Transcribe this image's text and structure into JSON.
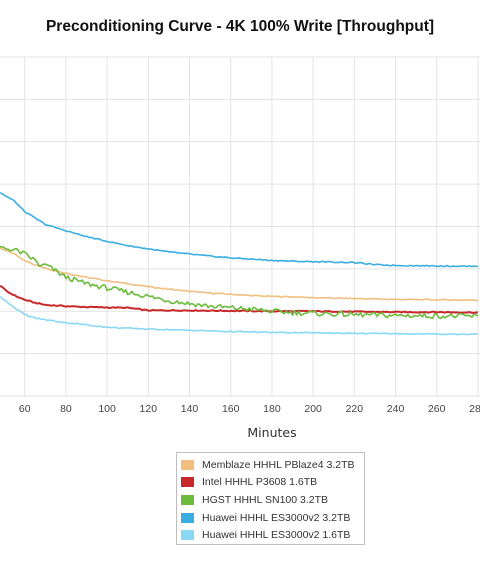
{
  "chart_data": {
    "type": "line",
    "title": "Preconditioning Curve - 4K 100% Write [Throughput]",
    "xlabel": "Minutes",
    "ylabel": "",
    "x_ticks": [
      60,
      80,
      100,
      120,
      140,
      160,
      180,
      200,
      220,
      240,
      260,
      280
    ],
    "xlim": [
      48,
      281
    ],
    "ylim": [
      0,
      8
    ],
    "y_gridlines": [
      0,
      1,
      2,
      3,
      4,
      5,
      6,
      7,
      8
    ],
    "grid": true,
    "legend_position": "bottom",
    "series": [
      {
        "name": "Memblaze HHHL PBlaze4 3.2TB",
        "color": "#f0bf80",
        "x": [
          48,
          55,
          60,
          65,
          70,
          75,
          80,
          90,
          100,
          110,
          120,
          130,
          140,
          150,
          160,
          170,
          180,
          190,
          200,
          220,
          240,
          260,
          280
        ],
        "y": [
          3.5,
          3.35,
          3.2,
          3.1,
          3.02,
          2.95,
          2.9,
          2.8,
          2.72,
          2.65,
          2.58,
          2.52,
          2.47,
          2.43,
          2.4,
          2.37,
          2.35,
          2.34,
          2.32,
          2.3,
          2.28,
          2.27,
          2.26
        ]
      },
      {
        "name": "Intel HHHL P3608 1.6TB",
        "color": "#c8282a",
        "x": [
          48,
          52,
          56,
          60,
          65,
          70,
          80,
          90,
          100,
          110,
          115,
          120,
          130,
          140,
          160,
          180,
          200,
          220,
          240,
          260,
          280
        ],
        "y": [
          2.6,
          2.45,
          2.35,
          2.27,
          2.2,
          2.15,
          2.12,
          2.1,
          2.09,
          2.08,
          2.05,
          2.02,
          2.02,
          2.02,
          2.01,
          2.0,
          2.0,
          1.99,
          1.98,
          1.98,
          1.97
        ]
      },
      {
        "name": "HGST HHHL SN100 3.2TB",
        "color": "#6cbb3c",
        "x": [
          48,
          55,
          60,
          65,
          68,
          70,
          75,
          80,
          90,
          100,
          110,
          120,
          130,
          140,
          150,
          160,
          170,
          180,
          190,
          200,
          220,
          240,
          260,
          280
        ],
        "y": [
          3.5,
          3.45,
          3.35,
          3.2,
          3.05,
          3.1,
          2.95,
          2.8,
          2.65,
          2.55,
          2.45,
          2.35,
          2.25,
          2.18,
          2.12,
          2.08,
          2.05,
          2.0,
          1.97,
          1.95,
          1.92,
          1.9,
          1.89,
          1.88
        ]
      },
      {
        "name": "Huawei HHHL ES3000v2 3.2TB",
        "color": "#3aaee0",
        "x": [
          48,
          55,
          60,
          65,
          70,
          80,
          90,
          100,
          110,
          120,
          130,
          140,
          150,
          160,
          170,
          180,
          190,
          200,
          210,
          220,
          230,
          240,
          260,
          280
        ],
        "y": [
          4.8,
          4.6,
          4.35,
          4.2,
          4.05,
          3.9,
          3.76,
          3.65,
          3.55,
          3.47,
          3.4,
          3.35,
          3.3,
          3.26,
          3.23,
          3.2,
          3.18,
          3.17,
          3.16,
          3.15,
          3.1,
          3.08,
          3.07,
          3.06
        ]
      },
      {
        "name": "Huawei HHHL ES3000v2 1.6TB",
        "color": "#8ad8f5",
        "x": [
          48,
          52,
          56,
          60,
          65,
          70,
          80,
          90,
          100,
          120,
          140,
          160,
          180,
          200,
          220,
          240,
          260,
          280
        ],
        "y": [
          2.35,
          2.2,
          2.05,
          1.92,
          1.84,
          1.8,
          1.73,
          1.68,
          1.62,
          1.58,
          1.55,
          1.52,
          1.5,
          1.49,
          1.48,
          1.47,
          1.46,
          1.46
        ]
      }
    ]
  }
}
